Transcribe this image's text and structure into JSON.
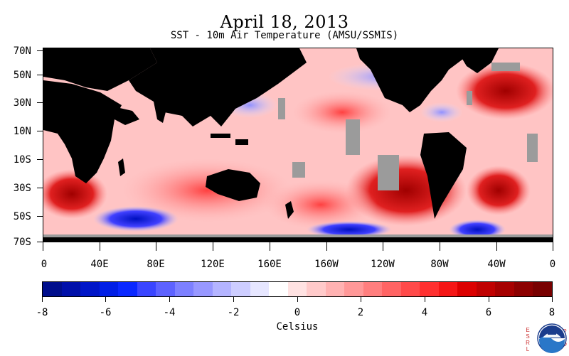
{
  "title": "April 18, 2013",
  "subtitle": "SST - 10m Air Temperature (AMSU/SSMIS)",
  "lat_labels": [
    "70N",
    "50N",
    "30N",
    "10N",
    "10S",
    "30S",
    "50S",
    "70S"
  ],
  "lon_labels": [
    "0",
    "40E",
    "80E",
    "120E",
    "160E",
    "160W",
    "120W",
    "80W",
    "40W",
    "0"
  ],
  "colorbar": {
    "ticks": [
      "-8",
      "-6",
      "-4",
      "-2",
      "0",
      "2",
      "4",
      "6",
      "8"
    ],
    "unit": "Celsius",
    "range": [
      -8,
      8
    ],
    "colors": [
      "#000e8c",
      "#0010aa",
      "#0016c8",
      "#001ee6",
      "#0a28ff",
      "#3a45ff",
      "#5d62ff",
      "#7d80ff",
      "#9898ff",
      "#b4b4ff",
      "#cdcdff",
      "#e6e6ff",
      "#ffffff",
      "#ffe2e2",
      "#ffcaca",
      "#ffb2b2",
      "#ff9898",
      "#ff7e7e",
      "#ff6464",
      "#ff4a4a",
      "#ff3030",
      "#f51616",
      "#dc0000",
      "#c00000",
      "#a60000",
      "#8c0000",
      "#780000"
    ]
  },
  "logo": {
    "left_text": "ESRL",
    "right_text": "PSD",
    "name": "noaa-logo"
  }
}
